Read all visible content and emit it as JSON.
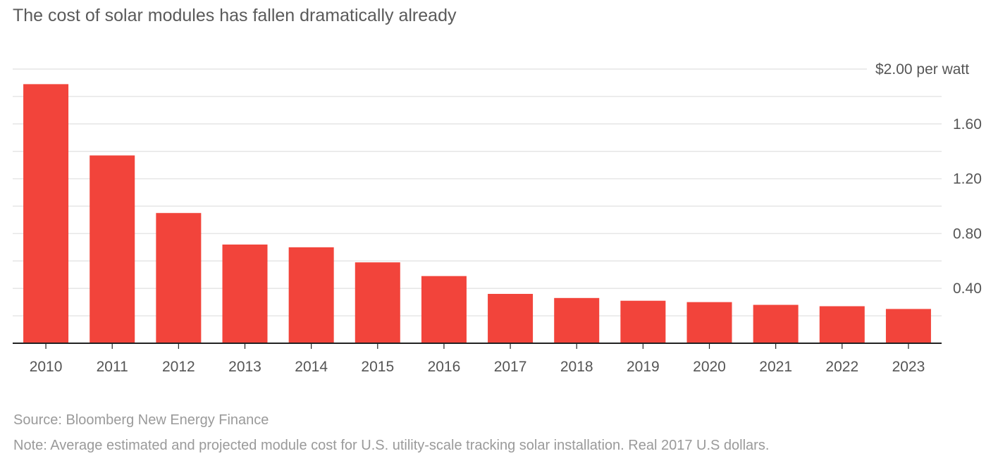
{
  "title": "The cost of solar modules has fallen dramatically already",
  "source": "Source: Bloomberg New Energy Finance",
  "note": "Note: Average estimated and projected module cost for U.S. utility-scale tracking solar installation. Real 2017 U.S dollars.",
  "chart_data": {
    "type": "bar",
    "categories": [
      "2010",
      "2011",
      "2012",
      "2013",
      "2014",
      "2015",
      "2016",
      "2017",
      "2018",
      "2019",
      "2020",
      "2021",
      "2022",
      "2023"
    ],
    "values": [
      1.89,
      1.37,
      0.95,
      0.72,
      0.7,
      0.59,
      0.49,
      0.36,
      0.33,
      0.31,
      0.3,
      0.28,
      0.27,
      0.25
    ],
    "ylim": [
      0,
      2.0
    ],
    "yticks": [
      {
        "value": 2.0,
        "label": "$2.00 per watt"
      },
      {
        "value": 1.6,
        "label": "1.60"
      },
      {
        "value": 1.2,
        "label": "1.20"
      },
      {
        "value": 0.8,
        "label": "0.80"
      },
      {
        "value": 0.4,
        "label": "0.40"
      }
    ],
    "minor_gridlines": [
      0.2,
      0.6,
      1.0,
      1.4,
      1.8
    ],
    "grid": true,
    "y_axis_position": "right",
    "colors": {
      "bar": "#f2443b",
      "grid": "#e6e6e6",
      "axis": "#222222",
      "tick_label": "#555555"
    }
  }
}
